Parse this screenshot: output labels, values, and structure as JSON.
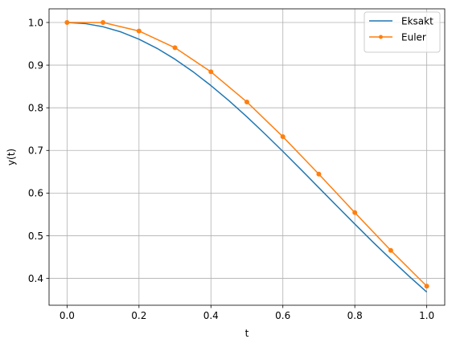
{
  "chart_data": {
    "type": "line",
    "title": "",
    "xlabel": "t",
    "ylabel": "y(t)",
    "xlim": [
      -0.05,
      1.05
    ],
    "ylim": [
      0.337,
      1.032
    ],
    "grid": true,
    "legend_position": "top-right",
    "x_ticks": [
      0.0,
      0.2,
      0.4,
      0.6,
      0.8,
      1.0
    ],
    "x_tick_labels": [
      "0.0",
      "0.2",
      "0.4",
      "0.6",
      "0.8",
      "1.0"
    ],
    "y_ticks": [
      0.4,
      0.5,
      0.6,
      0.7,
      0.8,
      0.9,
      1.0
    ],
    "y_tick_labels": [
      "0.4",
      "0.5",
      "0.6",
      "0.7",
      "0.8",
      "0.9",
      "1.0"
    ],
    "series": [
      {
        "name": "Eksakt",
        "color": "#1f77b4",
        "marker": "none",
        "x": [
          0.0,
          0.05,
          0.1,
          0.15,
          0.2,
          0.25,
          0.3,
          0.35,
          0.4,
          0.45,
          0.5,
          0.55,
          0.6,
          0.65,
          0.7,
          0.75,
          0.8,
          0.85,
          0.9,
          0.95,
          1.0
        ],
        "y": [
          1.0,
          0.9975,
          0.99,
          0.9778,
          0.9608,
          0.9394,
          0.9139,
          0.8847,
          0.8521,
          0.8167,
          0.7788,
          0.7389,
          0.6977,
          0.6554,
          0.6126,
          0.5698,
          0.5273,
          0.4855,
          0.4449,
          0.4056,
          0.3679
        ]
      },
      {
        "name": "Euler",
        "color": "#ff7f0e",
        "marker": "circle",
        "x": [
          0.0,
          0.1,
          0.2,
          0.3,
          0.4,
          0.5,
          0.6,
          0.7,
          0.8,
          0.9,
          1.0
        ],
        "y": [
          1.0,
          1.0,
          0.98,
          0.9408,
          0.8843,
          0.8136,
          0.7322,
          0.6444,
          0.5542,
          0.4655,
          0.3817
        ]
      }
    ]
  }
}
